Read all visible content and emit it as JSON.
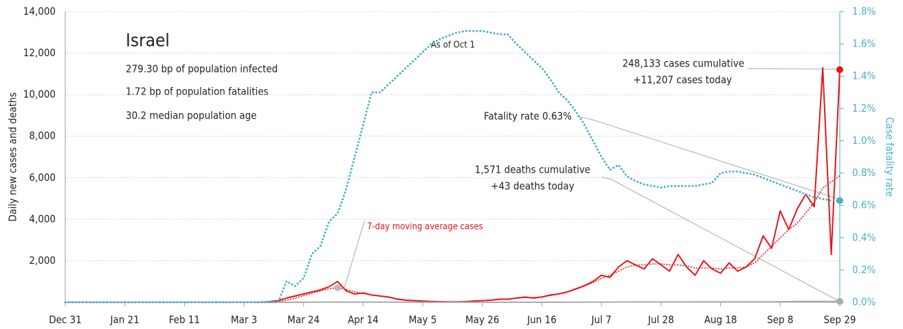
{
  "chart_data": {
    "type": "line",
    "title": "Israel",
    "subtitle_lines": [
      "279.30 bp of population infected",
      "1.72 bp of population fatalities",
      "30.2 median population age"
    ],
    "annotations": [
      "As of Oct 1",
      "248,133 cases cumulative",
      "+11,207 cases today",
      "Fatality rate 0.63%",
      "1,571 deaths cumulative",
      "+43 deaths today"
    ],
    "ylabel": "Daily new cases and deaths",
    "y2label": "Case fatality rate",
    "categories": [
      "Dec 31",
      null,
      null,
      null,
      null,
      null,
      null,
      "Jan 21",
      null,
      null,
      null,
      null,
      null,
      null,
      "Feb 11",
      null,
      null,
      null,
      null,
      null,
      null,
      "Mar 3",
      null,
      null,
      null,
      null,
      null,
      null,
      "Mar 24",
      null,
      null,
      null,
      null,
      null,
      null,
      "Apr 14",
      null,
      null,
      null,
      null,
      null,
      null,
      "May 5",
      null,
      null,
      null,
      null,
      null,
      null,
      "May 26",
      null,
      null,
      null,
      null,
      null,
      null,
      "Jun 16",
      null,
      null,
      null,
      null,
      null,
      null,
      "Jul 7",
      null,
      null,
      null,
      null,
      null,
      null,
      "Jul 28",
      null,
      null,
      null,
      null,
      null,
      null,
      "Aug 18",
      null,
      null,
      null,
      null,
      null,
      null,
      "Sep 8",
      null,
      null,
      null,
      null,
      null,
      null,
      "Sep 29"
    ],
    "series": [
      {
        "color": "#e8141b",
        "style": "solid",
        "values": [
          0,
          0,
          0,
          0,
          0,
          0,
          0,
          0,
          0,
          0,
          0,
          0,
          0,
          0,
          0,
          0,
          0,
          0,
          0,
          0,
          0,
          0,
          0,
          10,
          30,
          80,
          200,
          300,
          400,
          500,
          600,
          750,
          1000,
          550,
          400,
          450,
          350,
          300,
          250,
          150,
          100,
          80,
          60,
          40,
          30,
          20,
          20,
          30,
          60,
          80,
          100,
          150,
          150,
          200,
          250,
          200,
          250,
          350,
          400,
          500,
          650,
          800,
          1000,
          1300,
          1200,
          1700,
          2000,
          1800,
          1600,
          2100,
          1800,
          1500,
          2300,
          1700,
          1300,
          2000,
          1600,
          1400,
          1900,
          1500,
          1700,
          2100,
          3200,
          2600,
          4400,
          3500,
          4500,
          5200,
          4600,
          11300,
          2300,
          11207
        ]
      },
      {
        "name": "7-day moving average cases",
        "color": "#e8141b",
        "style": "dotted",
        "values": [
          0,
          0,
          0,
          0,
          0,
          0,
          0,
          0,
          0,
          0,
          0,
          0,
          0,
          0,
          0,
          0,
          0,
          0,
          0,
          0,
          0,
          0,
          0,
          0,
          10,
          40,
          100,
          200,
          320,
          430,
          550,
          650,
          700,
          620,
          500,
          420,
          360,
          300,
          240,
          170,
          110,
          80,
          60,
          40,
          30,
          25,
          25,
          35,
          55,
          80,
          100,
          130,
          160,
          190,
          220,
          230,
          260,
          320,
          400,
          490,
          620,
          780,
          950,
          1150,
          1300,
          1500,
          1700,
          1800,
          1800,
          1850,
          1850,
          1800,
          1800,
          1750,
          1650,
          1650,
          1650,
          1600,
          1650,
          1650,
          1700,
          1900,
          2300,
          2700,
          3100,
          3500,
          3800,
          4300,
          4800,
          5500,
          5800,
          6100
        ]
      },
      {
        "color": "#aaaaaa",
        "style": "solid",
        "values": [
          0,
          0,
          0,
          0,
          0,
          0,
          0,
          0,
          0,
          0,
          0,
          0,
          0,
          0,
          0,
          0,
          0,
          0,
          0,
          0,
          0,
          0,
          0,
          0,
          0,
          0,
          0,
          0,
          2,
          4,
          6,
          8,
          10,
          10,
          9,
          8,
          7,
          6,
          5,
          4,
          3,
          2,
          1,
          1,
          0,
          0,
          0,
          0,
          0,
          0,
          0,
          0,
          0,
          0,
          0,
          1,
          1,
          2,
          2,
          3,
          4,
          5,
          6,
          8,
          10,
          12,
          14,
          15,
          15,
          16,
          16,
          17,
          18,
          18,
          19,
          20,
          20,
          20,
          20,
          21,
          22,
          23,
          25,
          27,
          30,
          32,
          35,
          38,
          40,
          42,
          43,
          43
        ]
      },
      {
        "color": "#4ab0c8",
        "style": "dotted",
        "axis": "y2",
        "values": [
          0,
          0,
          0,
          0,
          0,
          0,
          0,
          0,
          0,
          0,
          0,
          0,
          0,
          0,
          0,
          0,
          0,
          0,
          0,
          0,
          0,
          0,
          0,
          0,
          0,
          0,
          0.13,
          0.1,
          0.15,
          0.3,
          0.35,
          0.5,
          0.55,
          0.7,
          0.9,
          1.1,
          1.3,
          1.3,
          1.35,
          1.4,
          1.45,
          1.5,
          1.55,
          1.6,
          1.63,
          1.65,
          1.67,
          1.68,
          1.68,
          1.68,
          1.67,
          1.66,
          1.66,
          1.6,
          1.55,
          1.5,
          1.45,
          1.38,
          1.3,
          1.25,
          1.18,
          1.1,
          1.0,
          0.9,
          0.82,
          0.85,
          0.78,
          0.75,
          0.73,
          0.72,
          0.71,
          0.72,
          0.72,
          0.72,
          0.72,
          0.73,
          0.74,
          0.8,
          0.81,
          0.81,
          0.8,
          0.79,
          0.77,
          0.75,
          0.73,
          0.71,
          0.69,
          0.67,
          0.65,
          0.64,
          0.63,
          0.63
        ]
      }
    ],
    "ylim": [
      0,
      14000
    ],
    "yticks": [
      {
        "value": 2000,
        "label": "2,000"
      },
      {
        "value": 4000,
        "label": "4,000"
      },
      {
        "value": 6000,
        "label": "6,000"
      },
      {
        "value": 8000,
        "label": "8,000"
      },
      {
        "value": 10000,
        "label": "10,000"
      },
      {
        "value": 12000,
        "label": "12,000"
      },
      {
        "value": 14000,
        "label": "14,000"
      }
    ],
    "y2lim": [
      0,
      1.8
    ],
    "y2ticks": [
      {
        "value": 0,
        "label": "0.0%"
      },
      {
        "value": 0.2,
        "label": "0.2%"
      },
      {
        "value": 0.4,
        "label": "0.4%"
      },
      {
        "value": 0.6,
        "label": "0.6%"
      },
      {
        "value": 0.8,
        "label": "0.8%"
      },
      {
        "value": 1.0,
        "label": "1.0%"
      },
      {
        "value": 1.2,
        "label": "1.2%"
      },
      {
        "value": 1.4,
        "label": "1.4%"
      },
      {
        "value": 1.6,
        "label": "1.6%"
      },
      {
        "value": 1.8,
        "label": "1.8%"
      }
    ],
    "grid": true
  }
}
